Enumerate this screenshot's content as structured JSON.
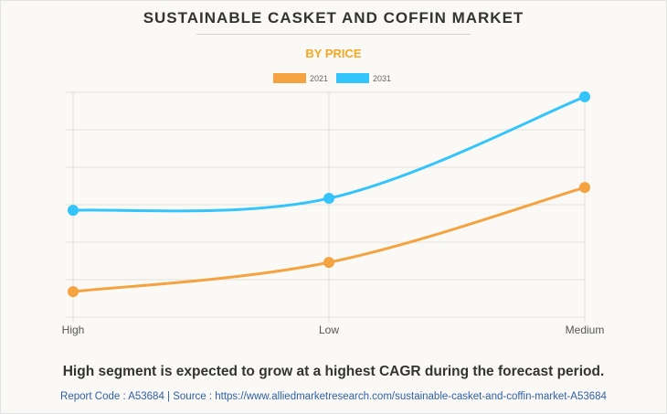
{
  "header": {
    "title": "SUSTAINABLE CASKET AND COFFIN MARKET",
    "subtitle": "BY PRICE"
  },
  "colors": {
    "series_2021": "#f4a340",
    "series_2031": "#33c4fb",
    "subtitle": "#f5a623",
    "grid": "#e3e1dc",
    "source_link": "#2e5fa8"
  },
  "chart_data": {
    "type": "line",
    "title": "SUSTAINABLE CASKET AND COFFIN MARKET",
    "subtitle": "BY PRICE",
    "categories": [
      "High",
      "Low",
      "Medium"
    ],
    "series": [
      {
        "name": "2021",
        "values": [
          0.68,
          1.46,
          3.46
        ]
      },
      {
        "name": "2031",
        "values": [
          2.85,
          3.17,
          5.88
        ]
      }
    ],
    "xlabel": "",
    "ylabel": "",
    "ylim": [
      0,
      6
    ],
    "y_gridlines": [
      0,
      1,
      2,
      3,
      4,
      5,
      6
    ],
    "y_tick_labels_shown": false,
    "grid": true,
    "smooth": true,
    "legend": {
      "position": "top-center",
      "entries": [
        "2021",
        "2031"
      ]
    }
  },
  "footer": {
    "caption": "High segment is expected to grow at a highest CAGR during the forecast period.",
    "source": "Report Code : A53684  |  Source : https://www.alliedmarketresearch.com/sustainable-casket-and-coffin-market-A53684"
  }
}
